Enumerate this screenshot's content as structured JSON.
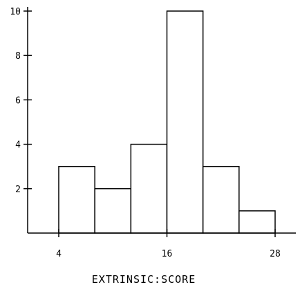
{
  "chart_data": {
    "type": "bar",
    "title": "",
    "xlabel": "EXTRINSIC:SCORE",
    "ylabel": "",
    "bins": [
      {
        "start": 4,
        "end": 8,
        "count": 3
      },
      {
        "start": 8,
        "end": 12,
        "count": 2
      },
      {
        "start": 12,
        "end": 16,
        "count": 4
      },
      {
        "start": 16,
        "end": 20,
        "count": 10
      },
      {
        "start": 20,
        "end": 24,
        "count": 3
      },
      {
        "start": 24,
        "end": 28,
        "count": 1
      }
    ],
    "x_ticks": [
      4,
      16,
      28
    ],
    "y_ticks": [
      2,
      4,
      6,
      8,
      10
    ],
    "xlim": [
      1,
      31
    ],
    "ylim": [
      0,
      10
    ],
    "grid": false,
    "legend": "none"
  }
}
